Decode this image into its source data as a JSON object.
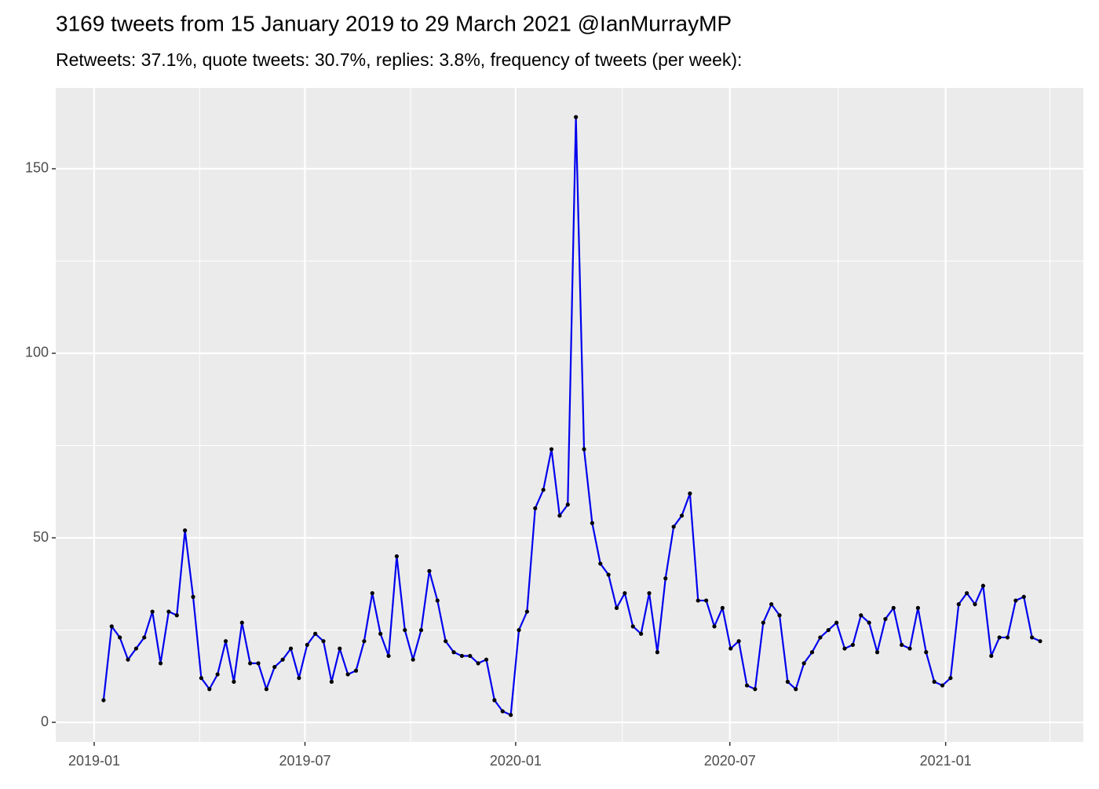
{
  "chart_data": {
    "type": "line",
    "title": "3169 tweets from 15 January 2019 to 29 March 2021 @IanMurrayMP",
    "subtitle": "Retweets: 37.1%, quote tweets: 30.7%, replies: 3.8%, frequency of tweets (per week):",
    "values": [
      6,
      26,
      23,
      17,
      20,
      23,
      30,
      16,
      30,
      29,
      52,
      34,
      12,
      9,
      13,
      22,
      11,
      27,
      16,
      16,
      9,
      15,
      17,
      20,
      12,
      21,
      24,
      22,
      11,
      20,
      13,
      14,
      22,
      35,
      24,
      18,
      45,
      25,
      17,
      25,
      41,
      33,
      22,
      19,
      18,
      18,
      16,
      17,
      6,
      3,
      2,
      25,
      30,
      58,
      63,
      74,
      56,
      59,
      164,
      74,
      54,
      43,
      40,
      31,
      35,
      26,
      24,
      35,
      19,
      39,
      53,
      56,
      62,
      33,
      33,
      26,
      31,
      20,
      22,
      10,
      9,
      27,
      32,
      29,
      11,
      9,
      16,
      19,
      23,
      25,
      27,
      20,
      21,
      29,
      27,
      19,
      28,
      31,
      21,
      20,
      31,
      19,
      11,
      10,
      12,
      32,
      35,
      32,
      37,
      18,
      23,
      23,
      33,
      34,
      23,
      22
    ],
    "color": "#0000ee",
    "point_color": "#000000",
    "xlim": [
      -5.87,
      120.3
    ],
    "xticks": [
      {
        "value": -1.15,
        "label": "2019-01"
      },
      {
        "value": 24.73,
        "label": "2019-07"
      },
      {
        "value": 50.6,
        "label": "2020-01"
      },
      {
        "value": 76.9,
        "label": "2020-07"
      },
      {
        "value": 103.4,
        "label": "2021-01"
      }
    ],
    "minor_xticks": [
      11.8,
      37.7,
      63.7,
      90.2,
      116.2
    ],
    "ylim": [
      -5.3,
      171.9
    ],
    "yticks": [
      0,
      50,
      100,
      150
    ],
    "minor_yticks": [
      25,
      75,
      125
    ],
    "grid": true
  }
}
